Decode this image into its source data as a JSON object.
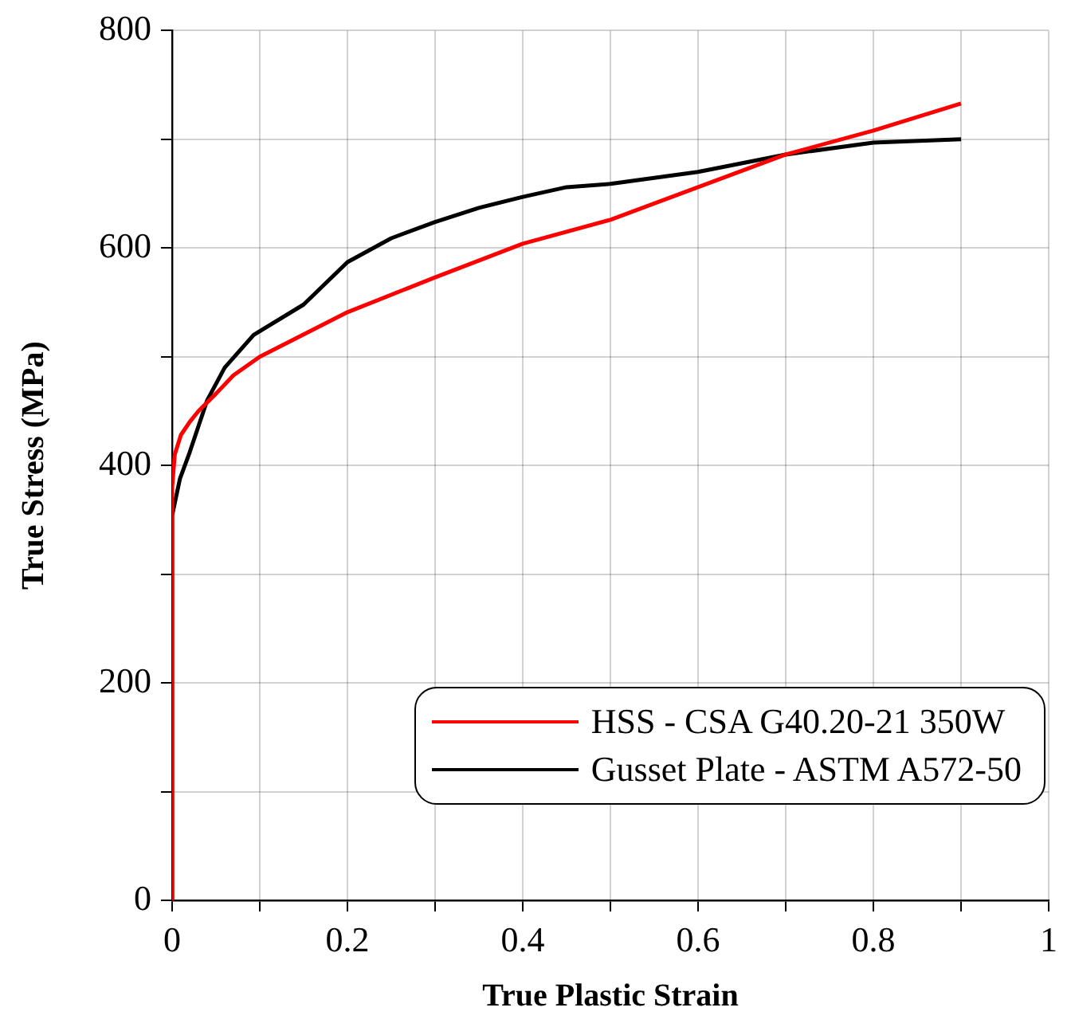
{
  "chart_data": {
    "type": "line",
    "xlabel": "True Plastic Strain",
    "ylabel": "True Stress (MPa)",
    "xlim": [
      0,
      1
    ],
    "xticks": [
      0,
      {
        "value": 0.1,
        "label": null
      },
      0.2,
      {
        "value": 0.3,
        "label": null
      },
      0.4,
      {
        "value": 0.5,
        "label": null
      },
      0.6,
      {
        "value": 0.7,
        "label": null
      },
      0.8,
      {
        "value": 0.9,
        "label": null
      },
      1
    ],
    "ylim": [
      0,
      800
    ],
    "yticks": [
      0,
      {
        "value": 100,
        "label": null
      },
      200,
      {
        "value": 300,
        "label": null
      },
      400,
      {
        "value": 500,
        "label": null
      },
      600,
      {
        "value": 700,
        "label": null
      },
      800
    ],
    "grid": true,
    "legend": "bottom right",
    "marker": "none",
    "line_style": "solid",
    "series": [
      {
        "name": "HSS - CSA G40.20-21 350W",
        "color": "#ff0000",
        "x": [
          0,
          0,
          0.003,
          0.01,
          0.02,
          0.03,
          0.05,
          0.07,
          0.1,
          0.2,
          0.3,
          0.4,
          0.5,
          0.6,
          0.7,
          0.8,
          0.9
        ],
        "values": [
          0,
          380,
          410,
          428,
          440,
          450,
          466,
          483,
          500,
          541,
          573,
          604,
          626,
          656,
          686,
          708,
          733
        ]
      },
      {
        "name": "Gusset Plate - ASTM A572-50",
        "color": "#000000",
        "x": [
          0,
          0,
          0.009,
          0.02,
          0.04,
          0.06,
          0.093,
          0.15,
          0.2,
          0.25,
          0.3,
          0.35,
          0.4,
          0.45,
          0.5,
          0.6,
          0.7,
          0.8,
          0.9
        ],
        "values": [
          0,
          354,
          388,
          412,
          460,
          490,
          520,
          548,
          587,
          609,
          624,
          637,
          647,
          656,
          659,
          670,
          686,
          697,
          700
        ]
      }
    ]
  }
}
